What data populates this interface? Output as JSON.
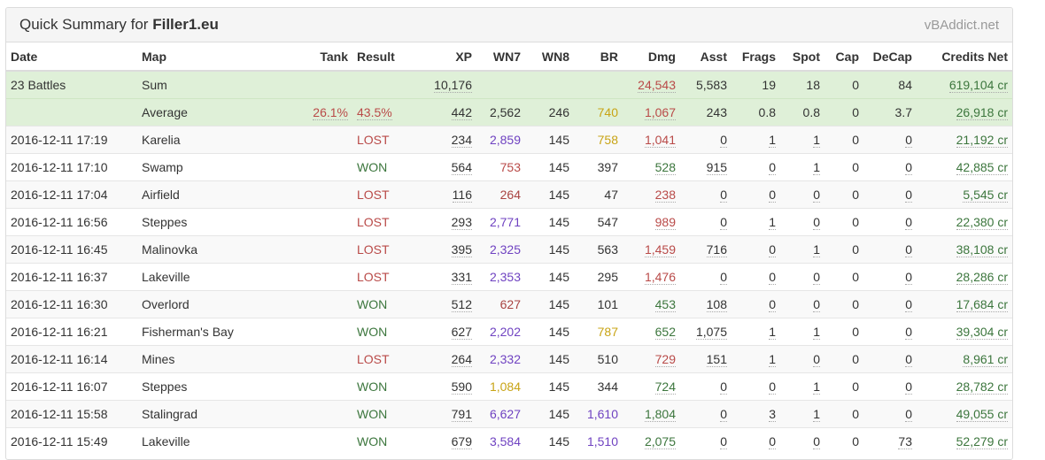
{
  "header": {
    "title_prefix": "Quick Summary for",
    "player": "Filler1.eu",
    "brand": "vBAddict.net"
  },
  "columns": [
    "Date",
    "Map",
    "Tank",
    "Result",
    "XP",
    "WN7",
    "WN8",
    "BR",
    "Dmg",
    "Asst",
    "Frags",
    "Spot",
    "Cap",
    "DeCap",
    "Credits Net"
  ],
  "colors": {
    "red": "#b94a48",
    "green": "#3c763d",
    "purple": "#6f42c1",
    "gold": "#c8a415",
    "summary_bg": "#dff0d8"
  },
  "summary": {
    "sum": {
      "date": "23 Battles",
      "map": "Sum",
      "tank": "",
      "result": "",
      "xp": "10,176",
      "wn7": "",
      "wn8": "",
      "br": "",
      "dmg": "24,543",
      "asst": "5,583",
      "frags": "19",
      "spot": "18",
      "cap": "0",
      "decap": "84",
      "credits": "619,104 cr"
    },
    "avg": {
      "date": "",
      "map": "Average",
      "tank": "26.1%",
      "result": "43.5%",
      "xp": "442",
      "wn7": "2,562",
      "wn8": "246",
      "br": "740",
      "dmg": "1,067",
      "asst": "243",
      "frags": "0.8",
      "spot": "0.8",
      "cap": "0",
      "decap": "3.7",
      "credits": "26,918 cr"
    }
  },
  "rows": [
    {
      "date": "2016-12-11 17:19",
      "map": "Karelia",
      "result": "LOST",
      "xp": "234",
      "wn7": "2,859",
      "wn8": "145",
      "br": "758",
      "dmg": "1,041",
      "asst": "0",
      "frags": "1",
      "spot": "1",
      "cap": "0",
      "decap": "0",
      "credits": "21,192 cr"
    },
    {
      "date": "2016-12-11 17:10",
      "map": "Swamp",
      "result": "WON",
      "xp": "564",
      "wn7": "753",
      "wn8": "145",
      "br": "397",
      "dmg": "528",
      "asst": "915",
      "frags": "0",
      "spot": "1",
      "cap": "0",
      "decap": "0",
      "credits": "42,885 cr"
    },
    {
      "date": "2016-12-11 17:04",
      "map": "Airfield",
      "result": "LOST",
      "xp": "116",
      "wn7": "264",
      "wn8": "145",
      "br": "47",
      "dmg": "238",
      "asst": "0",
      "frags": "0",
      "spot": "0",
      "cap": "0",
      "decap": "0",
      "credits": "5,545 cr"
    },
    {
      "date": "2016-12-11 16:56",
      "map": "Steppes",
      "result": "LOST",
      "xp": "293",
      "wn7": "2,771",
      "wn8": "145",
      "br": "547",
      "dmg": "989",
      "asst": "0",
      "frags": "1",
      "spot": "0",
      "cap": "0",
      "decap": "0",
      "credits": "22,380 cr"
    },
    {
      "date": "2016-12-11 16:45",
      "map": "Malinovka",
      "result": "LOST",
      "xp": "395",
      "wn7": "2,325",
      "wn8": "145",
      "br": "563",
      "dmg": "1,459",
      "asst": "716",
      "frags": "0",
      "spot": "1",
      "cap": "0",
      "decap": "0",
      "credits": "38,108 cr"
    },
    {
      "date": "2016-12-11 16:37",
      "map": "Lakeville",
      "result": "LOST",
      "xp": "331",
      "wn7": "2,353",
      "wn8": "145",
      "br": "295",
      "dmg": "1,476",
      "asst": "0",
      "frags": "0",
      "spot": "0",
      "cap": "0",
      "decap": "0",
      "credits": "28,286 cr"
    },
    {
      "date": "2016-12-11 16:30",
      "map": "Overlord",
      "result": "WON",
      "xp": "512",
      "wn7": "627",
      "wn8": "145",
      "br": "101",
      "dmg": "453",
      "asst": "108",
      "frags": "0",
      "spot": "0",
      "cap": "0",
      "decap": "0",
      "credits": "17,684 cr"
    },
    {
      "date": "2016-12-11 16:21",
      "map": "Fisherman's Bay",
      "result": "WON",
      "xp": "627",
      "wn7": "2,202",
      "wn8": "145",
      "br": "787",
      "dmg": "652",
      "asst": "1,075",
      "frags": "1",
      "spot": "1",
      "cap": "0",
      "decap": "0",
      "credits": "39,304 cr"
    },
    {
      "date": "2016-12-11 16:14",
      "map": "Mines",
      "result": "LOST",
      "xp": "264",
      "wn7": "2,332",
      "wn8": "145",
      "br": "510",
      "dmg": "729",
      "asst": "151",
      "frags": "1",
      "spot": "0",
      "cap": "0",
      "decap": "0",
      "credits": "8,961 cr"
    },
    {
      "date": "2016-12-11 16:07",
      "map": "Steppes",
      "result": "WON",
      "xp": "590",
      "wn7": "1,084",
      "wn8": "145",
      "br": "344",
      "dmg": "724",
      "asst": "0",
      "frags": "0",
      "spot": "1",
      "cap": "0",
      "decap": "0",
      "credits": "28,782 cr"
    },
    {
      "date": "2016-12-11 15:58",
      "map": "Stalingrad",
      "result": "WON",
      "xp": "791",
      "wn7": "6,627",
      "wn8": "145",
      "br": "1,610",
      "dmg": "1,804",
      "asst": "0",
      "frags": "3",
      "spot": "1",
      "cap": "0",
      "decap": "0",
      "credits": "49,055 cr"
    },
    {
      "date": "2016-12-11 15:49",
      "map": "Lakeville",
      "result": "WON",
      "xp": "679",
      "wn7": "3,584",
      "wn8": "145",
      "br": "1,510",
      "dmg": "2,075",
      "asst": "0",
      "frags": "0",
      "spot": "0",
      "cap": "0",
      "decap": "73",
      "credits": "52,279 cr"
    }
  ]
}
